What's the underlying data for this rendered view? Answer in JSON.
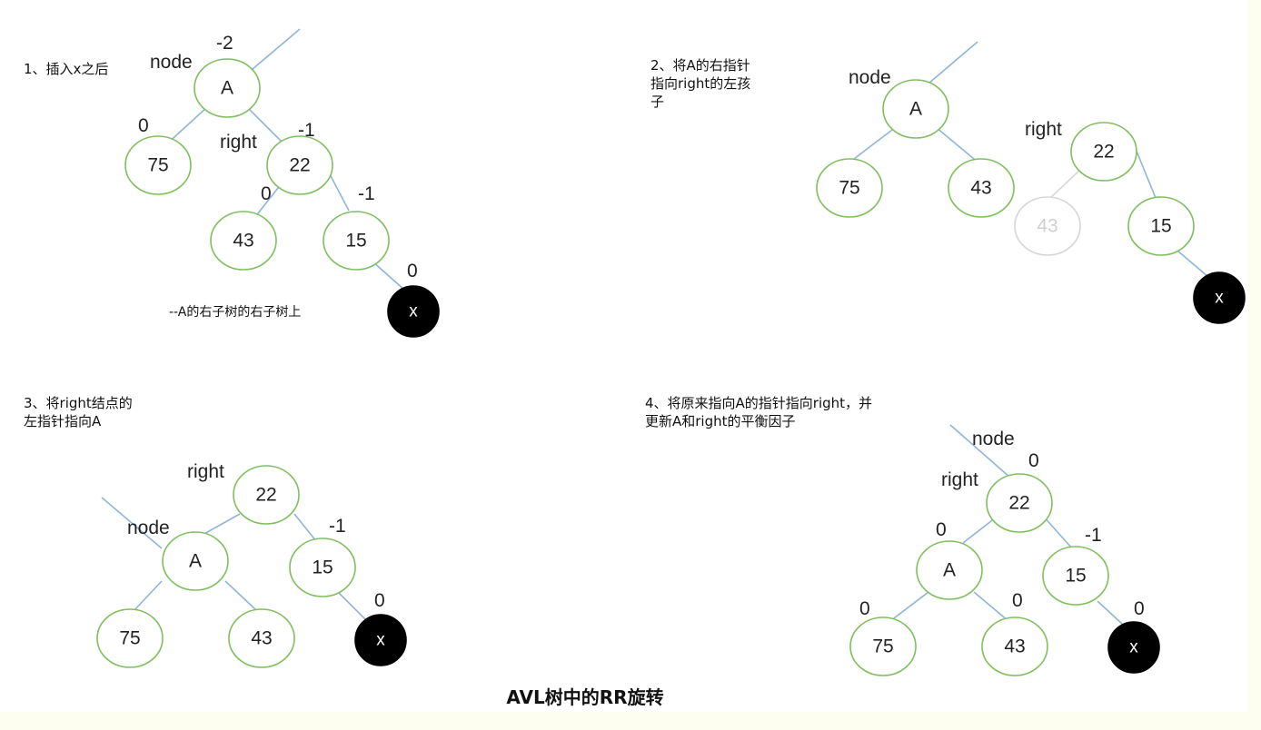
{
  "title": "AVL树中的RR旋转",
  "steps": [
    {
      "caption": "1、插入x之后",
      "note": "--A的右子树的右子树上",
      "nodes": [
        {
          "label": "A"
        },
        {
          "label": "75"
        },
        {
          "label": "22"
        },
        {
          "label": "43"
        },
        {
          "label": "15"
        },
        {
          "label": "x"
        }
      ],
      "tags": [
        "node",
        "right"
      ],
      "balances": [
        "-2",
        "0",
        "-1",
        "0",
        "-1",
        "0"
      ]
    },
    {
      "caption": "2、将A的右指针\n指向right的左孩\n子",
      "nodes": [
        {
          "label": "A"
        },
        {
          "label": "75"
        },
        {
          "label": "43"
        },
        {
          "label": "22"
        },
        {
          "label": "43"
        },
        {
          "label": "15"
        },
        {
          "label": "x"
        }
      ],
      "tags": [
        "node",
        "right"
      ]
    },
    {
      "caption": "3、将right结点的\n左指针指向A",
      "nodes": [
        {
          "label": "22"
        },
        {
          "label": "A"
        },
        {
          "label": "15"
        },
        {
          "label": "75"
        },
        {
          "label": "43"
        },
        {
          "label": "x"
        }
      ],
      "tags": [
        "right",
        "node"
      ],
      "balances": [
        "-1",
        "0"
      ]
    },
    {
      "caption": "4、将原来指向A的指针指向right，并\n更新A和right的平衡因子",
      "nodes": [
        {
          "label": "22"
        },
        {
          "label": "A"
        },
        {
          "label": "15"
        },
        {
          "label": "75"
        },
        {
          "label": "43"
        },
        {
          "label": "x"
        }
      ],
      "tags": [
        "node",
        "right"
      ],
      "balances": [
        "0",
        "0",
        "-1",
        "0",
        "0",
        "0"
      ]
    }
  ]
}
